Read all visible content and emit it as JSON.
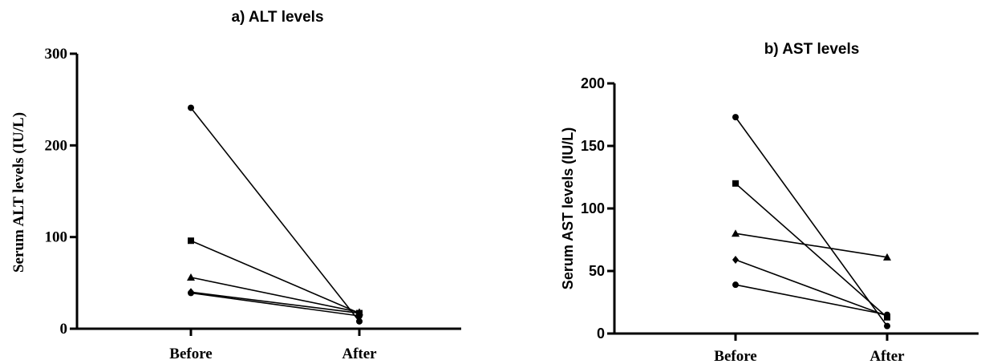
{
  "chart_data": [
    {
      "type": "line",
      "title": "a) ALT levels",
      "xlabel": "",
      "ylabel": "Serum ALT levels (IU/L)",
      "categories": [
        "Before",
        "After"
      ],
      "ylim": [
        0,
        300
      ],
      "yticks": [
        "0",
        "100",
        "200",
        "300"
      ],
      "grid": false,
      "series": [
        {
          "marker": "circle",
          "values": [
            241,
            8
          ]
        },
        {
          "marker": "square",
          "values": [
            96,
            17
          ]
        },
        {
          "marker": "triangle",
          "values": [
            56,
            18
          ]
        },
        {
          "marker": "diamond",
          "values": [
            40,
            17
          ]
        },
        {
          "marker": "circle",
          "values": [
            39,
            14
          ]
        }
      ]
    },
    {
      "type": "line",
      "title": "b) AST levels",
      "xlabel": "",
      "ylabel": "Serum AST levels (IU/L)",
      "categories": [
        "Before",
        "After"
      ],
      "ylim": [
        0,
        200
      ],
      "yticks": [
        "0",
        "50",
        "100",
        "150",
        "200"
      ],
      "grid": false,
      "series": [
        {
          "marker": "circle",
          "values": [
            173,
            6
          ]
        },
        {
          "marker": "square",
          "values": [
            120,
            13
          ]
        },
        {
          "marker": "triangle",
          "values": [
            80,
            61
          ]
        },
        {
          "marker": "diamond",
          "values": [
            59,
            14
          ]
        },
        {
          "marker": "circle",
          "values": [
            39,
            15
          ]
        }
      ]
    }
  ]
}
